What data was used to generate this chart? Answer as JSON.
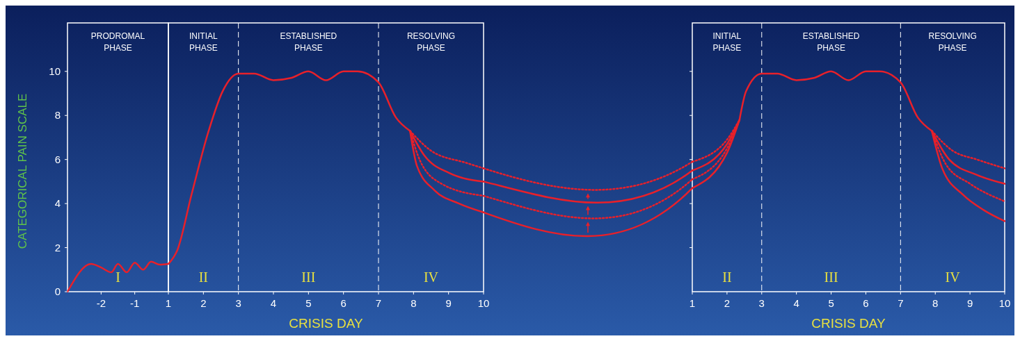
{
  "chart_data": [
    {
      "type": "line",
      "ylabel": "CATEGORICAL PAIN SCALE",
      "xlim": [
        -3,
        0
      ],
      "ylim": [
        0,
        12.2
      ],
      "xticks": [
        -2,
        -1
      ],
      "yticks": [
        0,
        2,
        4,
        6,
        8,
        10
      ],
      "annotations": [
        "PRODROMAL PHASE",
        "I"
      ],
      "series": [
        {
          "color": "#e8202a",
          "line_style": "solid",
          "x": [
            -3,
            -2.3,
            -2,
            -1.7,
            -1.5,
            -1.24,
            -1,
            -0.75,
            -0.515,
            -0.26,
            0
          ],
          "values": [
            0,
            1.26,
            1.1,
            0.88,
            1.26,
            0.88,
            1.32,
            1,
            1.36,
            1.23,
            1.26
          ]
        }
      ]
    },
    {
      "type": "line",
      "xlabel": "CRISIS DAY",
      "xlim": [
        1,
        10
      ],
      "ylim": [
        0,
        12.2
      ],
      "tick_labels": "x",
      "xticks": [
        1,
        2,
        3,
        4,
        5,
        6,
        7,
        8,
        9,
        10
      ],
      "ref_lines": [
        {
          "axis": "x",
          "value": 3
        },
        {
          "axis": "x",
          "value": 7
        }
      ],
      "annotations": [
        "INITIAL PHASE",
        "ESTABLISHED PHASE",
        "RESOLVING PHASE",
        "II",
        "III",
        "IV"
      ],
      "series": [
        {
          "color": "#e8202a",
          "line_style": "solid",
          "x": [
            1,
            1.26,
            1.66,
            2.15,
            2.55,
            3,
            3.45,
            4,
            4.5,
            5,
            5.5,
            6,
            6.4,
            7,
            7.5,
            7.9
          ],
          "values": [
            1.26,
            1.9,
            4.4,
            7.3,
            9.1,
            9.9,
            9.9,
            9.6,
            9.7,
            10,
            9.6,
            10,
            10,
            9.5,
            7.9,
            7.3
          ]
        },
        {
          "color": "#e8202a",
          "line_style": "dotted",
          "x": [
            7.9,
            8.5,
            9.5,
            10
          ],
          "values": [
            7.3,
            6.4,
            5.85,
            5.6
          ]
        },
        {
          "color": "#e8202a",
          "line_style": "solid",
          "x": [
            7.9,
            8.3,
            9,
            10
          ],
          "values": [
            7.3,
            6.2,
            5.4,
            5
          ]
        },
        {
          "color": "#e8202a",
          "line_style": "dotted",
          "x": [
            7.9,
            8.2,
            8.8,
            10
          ],
          "values": [
            7.3,
            5.9,
            4.9,
            4.35
          ]
        },
        {
          "color": "#e8202a",
          "line_style": "solid",
          "x": [
            7.9,
            8.1,
            8.6,
            9.3,
            10
          ],
          "values": [
            7.3,
            5.7,
            4.6,
            4,
            3.6
          ]
        }
      ]
    },
    {
      "type": "line",
      "xlabel": "CRISIS DAY",
      "xlim": [
        1,
        10
      ],
      "ylim": [
        0,
        12.2
      ],
      "tick_labels": "x",
      "xticks": [
        1,
        2,
        3,
        4,
        5,
        6,
        7,
        8,
        9,
        10
      ],
      "yticks": [
        2,
        4,
        6,
        8,
        10
      ],
      "ref_lines": [
        {
          "axis": "x",
          "value": 3
        },
        {
          "axis": "x",
          "value": 7
        }
      ],
      "annotations": [
        "INITIAL PHASE",
        "ESTABLISHED PHASE",
        "RESOLVING PHASE",
        "II",
        "III",
        "IV"
      ],
      "series": [
        {
          "color": "#e8202a",
          "line_style": "dotted",
          "x": [
            1,
            2,
            2.36
          ],
          "values": [
            5.9,
            6.9,
            7.8
          ]
        },
        {
          "color": "#e8202a",
          "line_style": "solid",
          "x": [
            1,
            2,
            2.36
          ],
          "values": [
            5.5,
            6.7,
            7.8
          ]
        },
        {
          "color": "#e8202a",
          "line_style": "dotted",
          "x": [
            1,
            2,
            2.36
          ],
          "values": [
            5.1,
            6.5,
            7.8
          ]
        },
        {
          "color": "#e8202a",
          "line_style": "solid",
          "x": [
            1,
            2,
            2.36
          ],
          "values": [
            4.7,
            6.3,
            7.8
          ]
        },
        {
          "color": "#e8202a",
          "line_style": "solid",
          "x": [
            2.36,
            2.55,
            3,
            3.45,
            4,
            4.5,
            5,
            5.5,
            6,
            6.4,
            7,
            7.5,
            7.9
          ],
          "values": [
            7.8,
            9.1,
            9.9,
            9.9,
            9.6,
            9.7,
            10,
            9.6,
            10,
            10,
            9.5,
            7.9,
            7.3
          ]
        },
        {
          "color": "#e8202a",
          "line_style": "dotted",
          "x": [
            7.9,
            8.5,
            9.2,
            10
          ],
          "values": [
            7.3,
            6.4,
            6,
            5.6
          ]
        },
        {
          "color": "#e8202a",
          "line_style": "solid",
          "x": [
            7.9,
            8.4,
            9.2,
            10
          ],
          "values": [
            7.3,
            6,
            5.3,
            4.9
          ]
        },
        {
          "color": "#e8202a",
          "line_style": "dotted",
          "x": [
            7.9,
            8.3,
            9,
            10
          ],
          "values": [
            7.3,
            5.8,
            4.9,
            4.1
          ]
        },
        {
          "color": "#e8202a",
          "line_style": "solid",
          "x": [
            7.9,
            8.2,
            8.8,
            9.4,
            10
          ],
          "values": [
            7.3,
            5.6,
            4.4,
            3.7,
            3.2
          ]
        }
      ]
    }
  ]
}
